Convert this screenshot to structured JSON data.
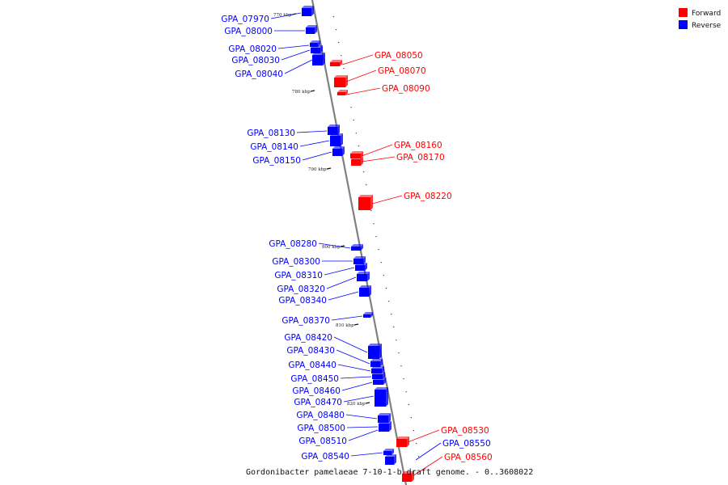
{
  "colors": {
    "forward": "#ff0000",
    "reverse": "#0000ff",
    "axis": "#808080",
    "text": "#111111"
  },
  "legend": {
    "forward_label": "Forward",
    "reverse_label": "Reverse"
  },
  "caption": "Gordonibacter pamelaeae 7-10-1-b draft genome. - 0..3608022",
  "axis_ticks": [
    {
      "label": "770 kbp"
    },
    {
      "label": "780 kbp"
    },
    {
      "label": "790 kbp"
    },
    {
      "label": "800 kbp"
    },
    {
      "label": "810 kbp"
    },
    {
      "label": "820 kbp"
    }
  ],
  "reverse_genes": [
    "GPA_07970",
    "GPA_08000",
    "GPA_08020",
    "GPA_08030",
    "GPA_08040",
    "GPA_08130",
    "GPA_08140",
    "GPA_08150",
    "GPA_08280",
    "GPA_08300",
    "GPA_08310",
    "GPA_08320",
    "GPA_08340",
    "GPA_08370",
    "GPA_08420",
    "GPA_08430",
    "GPA_08440",
    "GPA_08450",
    "GPA_08460",
    "GPA_08470",
    "GPA_08480",
    "GPA_08500",
    "GPA_08510",
    "GPA_08540"
  ],
  "forward_genes": [
    "GPA_08050",
    "GPA_08070",
    "GPA_08090",
    "GPA_08160",
    "GPA_08170",
    "GPA_08220",
    "GPA_08530",
    "GPA_08560"
  ],
  "extra_reverse_labels": [
    "GPA_08550"
  ]
}
